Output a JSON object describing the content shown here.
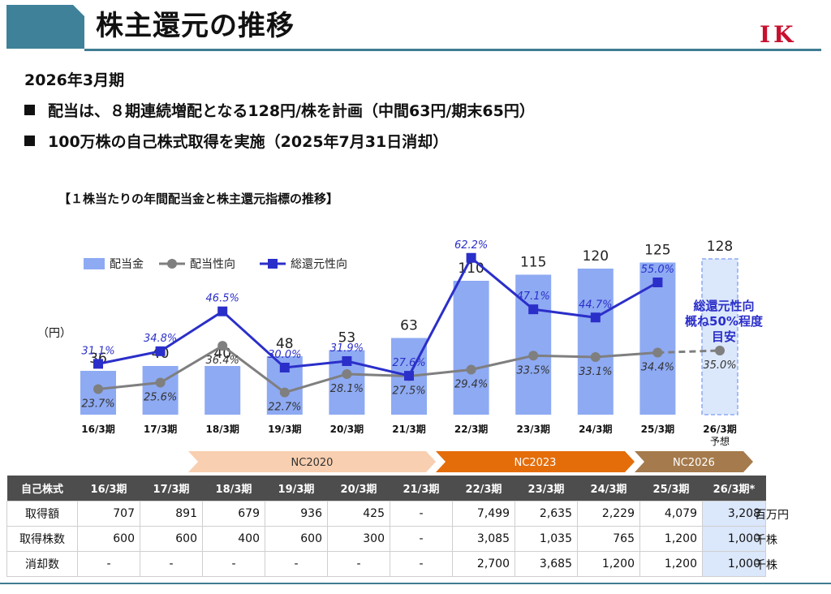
{
  "header": {
    "title": "株主還元の推移",
    "logo": "IK"
  },
  "period": "2026年3月期",
  "bullets": [
    "配当は、８期連続増配となる128円/株を計画（中間63円/期末65円）",
    "100万株の自己株式取得を実施（2025年7月31日消却）"
  ],
  "chart_data": {
    "type": "bar+line",
    "title": "【１株当たりの年間配当金と株主還元指標の推移】",
    "unit_label": "（円）",
    "categories": [
      "16/3期",
      "17/3期",
      "18/3期",
      "19/3期",
      "20/3期",
      "21/3期",
      "22/3期",
      "23/3期",
      "24/3期",
      "25/3期",
      "26/3期"
    ],
    "category_sub": [
      "",
      "",
      "",
      "",
      "",
      "",
      "",
      "",
      "",
      "",
      "予想"
    ],
    "series": [
      {
        "name": "配当金",
        "type": "bar",
        "values": [
          36,
          40,
          40,
          48,
          53,
          63,
          110,
          115,
          120,
          125,
          128
        ],
        "color": "#8eaaf3",
        "forecast_index": 10
      },
      {
        "name": "配当性向",
        "type": "line",
        "values": [
          23.7,
          25.6,
          36.4,
          22.7,
          28.1,
          27.5,
          29.4,
          33.5,
          33.1,
          34.4,
          35.0
        ],
        "labels": [
          "23.7%",
          "25.6%",
          "36.4%",
          "22.7%",
          "28.1%",
          "27.5%",
          "29.4%",
          "33.5%",
          "33.1%",
          "34.4%",
          "35.0%"
        ],
        "color": "#7f7f7f"
      },
      {
        "name": "総還元性向",
        "type": "line",
        "values": [
          31.1,
          34.8,
          46.5,
          30.0,
          31.9,
          27.6,
          62.2,
          47.1,
          44.7,
          55.0,
          null
        ],
        "labels": [
          "31.1%",
          "34.8%",
          "46.5%",
          "30.0%",
          "31.9%",
          "27.6%",
          "62.2%",
          "47.1%",
          "44.7%",
          "55.0%",
          ""
        ],
        "color": "#2b2fc9"
      }
    ],
    "annotation": [
      "総還元性向",
      "概ね50%程度",
      "目安"
    ],
    "legend_position": "upper-left",
    "grid": false
  },
  "phases": [
    {
      "label": "NC2020",
      "color": "#f8cfb0",
      "text_color": "#333333"
    },
    {
      "label": "NC2023",
      "color": "#e46d0a",
      "text_color": "#ffffff"
    },
    {
      "label": "NC2026",
      "color": "#a57a4c",
      "text_color": "#ffffff"
    }
  ],
  "table": {
    "header": [
      "自己株式",
      "16/3期",
      "17/3期",
      "18/3期",
      "19/3期",
      "20/3期",
      "21/3期",
      "22/3期",
      "23/3期",
      "24/3期",
      "25/3期",
      "26/3期*"
    ],
    "rows": [
      {
        "label": "取得額",
        "values": [
          "707",
          "891",
          "679",
          "936",
          "425",
          "-",
          "7,499",
          "2,635",
          "2,229",
          "4,079",
          "3,208"
        ],
        "unit": "百万円"
      },
      {
        "label": "取得株数",
        "values": [
          "600",
          "600",
          "400",
          "600",
          "300",
          "-",
          "3,085",
          "1,035",
          "765",
          "1,200",
          "1,000"
        ],
        "unit": "千株"
      },
      {
        "label": "消却数",
        "values": [
          "-",
          "-",
          "-",
          "-",
          "-",
          "-",
          "2,700",
          "3,685",
          "1,200",
          "1,200",
          "1,000"
        ],
        "unit": "千株"
      }
    ]
  }
}
